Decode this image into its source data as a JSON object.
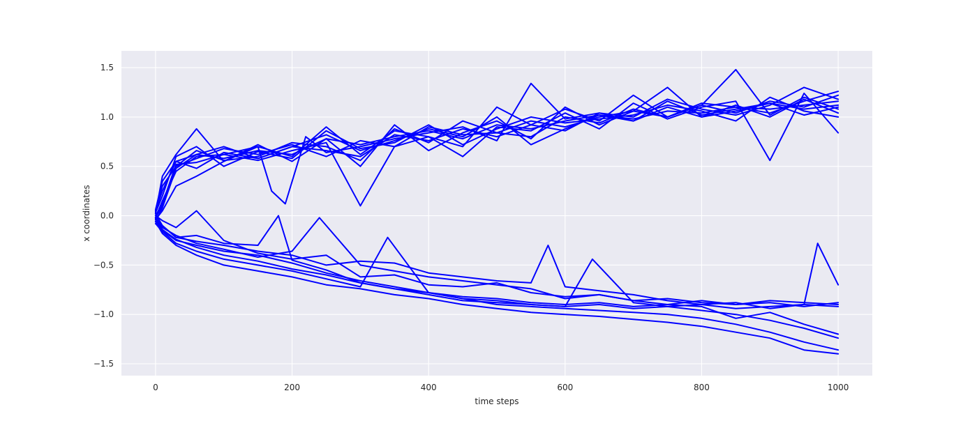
{
  "chart_data": {
    "type": "line",
    "title": "",
    "xlabel": "time steps",
    "ylabel": "x coordinates",
    "xlim": [
      -50,
      1050
    ],
    "ylim": [
      -1.62,
      1.67
    ],
    "xticks": [
      0,
      200,
      400,
      600,
      800,
      1000
    ],
    "yticks": [
      -1.5,
      -1.0,
      -0.5,
      0.0,
      0.5,
      1.0,
      1.5
    ],
    "xtick_labels": [
      "0",
      "200",
      "400",
      "600",
      "800",
      "1000"
    ],
    "ytick_labels": [
      "−1.5",
      "−1.0",
      "−0.5",
      "0.0",
      "0.5",
      "1.0",
      "1.5"
    ],
    "grid": true,
    "legend": "none",
    "colors": {
      "line": "#0000ff",
      "plot_bg": "#eaeaf2",
      "grid": "#ffffff",
      "text": "#262626"
    },
    "series": [
      {
        "x": [
          0,
          10,
          30,
          60,
          100,
          150,
          200,
          250,
          300,
          350,
          400,
          450,
          500,
          550,
          600,
          650,
          700,
          750,
          800,
          850,
          900,
          950,
          1000
        ],
        "values": [
          0.05,
          0.25,
          0.55,
          0.62,
          0.58,
          0.66,
          0.62,
          0.78,
          0.72,
          0.8,
          0.86,
          0.78,
          0.92,
          0.88,
          0.96,
          1.02,
          0.98,
          1.06,
          1.04,
          1.1,
          1.08,
          1.12,
          1.16
        ]
      },
      {
        "x": [
          0,
          10,
          30,
          60,
          100,
          150,
          200,
          250,
          300,
          350,
          400,
          450,
          500,
          550,
          600,
          650,
          700,
          750,
          800,
          850,
          900,
          950,
          1000
        ],
        "values": [
          0.02,
          0.4,
          0.62,
          0.88,
          0.55,
          0.7,
          0.6,
          0.9,
          0.62,
          0.86,
          0.8,
          0.7,
          1.1,
          0.92,
          1.08,
          0.96,
          1.22,
          1.0,
          1.12,
          1.48,
          1.02,
          1.2,
          1.08
        ]
      },
      {
        "x": [
          0,
          10,
          30,
          60,
          100,
          150,
          200,
          250,
          300,
          350,
          400,
          450,
          500,
          550,
          600,
          650,
          700,
          750,
          800,
          850,
          900,
          950,
          1000
        ],
        "values": [
          -0.02,
          0.1,
          0.5,
          0.58,
          0.68,
          0.62,
          0.72,
          0.6,
          0.76,
          0.7,
          0.9,
          0.82,
          0.84,
          0.96,
          0.9,
          1.0,
          1.06,
          1.0,
          1.12,
          1.04,
          1.16,
          1.1,
          1.22
        ]
      },
      {
        "x": [
          0,
          10,
          30,
          60,
          100,
          150,
          200,
          250,
          300,
          350,
          400,
          450,
          500,
          550,
          600,
          650,
          700,
          750,
          800,
          850,
          900,
          950,
          1000
        ],
        "values": [
          0.06,
          0.35,
          0.55,
          0.48,
          0.64,
          0.58,
          0.7,
          0.66,
          0.6,
          0.82,
          0.76,
          0.88,
          0.8,
          0.92,
          0.86,
          1.04,
          0.96,
          1.1,
          1.0,
          1.06,
          1.14,
          1.02,
          1.1
        ]
      },
      {
        "x": [
          0,
          10,
          30,
          60,
          100,
          150,
          200,
          250,
          300,
          350,
          400,
          450,
          500,
          550,
          600,
          650,
          700,
          750,
          800,
          850,
          900,
          950,
          1000
        ],
        "values": [
          -0.04,
          0.05,
          0.3,
          0.4,
          0.55,
          0.72,
          0.55,
          0.78,
          0.5,
          0.92,
          0.66,
          0.84,
          0.96,
          0.78,
          1.1,
          0.92,
          1.06,
          1.3,
          1.0,
          1.12,
          1.0,
          1.18,
          1.04
        ]
      },
      {
        "x": [
          0,
          10,
          30,
          60,
          100,
          150,
          200,
          250,
          300,
          350,
          400,
          450,
          500,
          550,
          600,
          650,
          700,
          750,
          800,
          850,
          900,
          950,
          1000
        ],
        "values": [
          0.03,
          0.2,
          0.6,
          0.7,
          0.5,
          0.65,
          0.58,
          0.86,
          0.68,
          0.74,
          0.92,
          0.72,
          0.88,
          1.0,
          0.94,
          0.98,
          1.02,
          1.12,
          1.06,
          0.96,
          1.2,
          1.06,
          1.0
        ]
      },
      {
        "x": [
          0,
          10,
          30,
          60,
          100,
          150,
          170,
          190,
          220,
          250,
          300,
          350,
          400,
          450,
          500,
          550,
          600,
          650,
          700,
          750,
          800,
          850,
          900,
          950,
          1000
        ],
        "values": [
          -0.02,
          0.15,
          0.45,
          0.6,
          0.62,
          0.7,
          0.25,
          0.12,
          0.8,
          0.64,
          0.7,
          0.78,
          0.84,
          0.9,
          0.76,
          1.34,
          0.98,
          1.04,
          1.0,
          1.18,
          1.08,
          1.02,
          1.12,
          1.3,
          1.18
        ]
      },
      {
        "x": [
          0,
          10,
          30,
          60,
          100,
          150,
          200,
          250,
          300,
          350,
          400,
          450,
          500,
          550,
          600,
          650,
          700,
          750,
          800,
          850,
          900,
          950,
          1000
        ],
        "values": [
          0.04,
          0.3,
          0.5,
          0.66,
          0.56,
          0.6,
          0.74,
          0.7,
          0.56,
          0.88,
          0.74,
          0.96,
          0.84,
          0.8,
          1.0,
          0.94,
          1.08,
          1.0,
          1.14,
          1.1,
          1.04,
          1.16,
          1.26
        ]
      },
      {
        "x": [
          0,
          10,
          30,
          60,
          100,
          150,
          200,
          250,
          300,
          350,
          400,
          450,
          500,
          550,
          600,
          650,
          700,
          750,
          800,
          850,
          900,
          950,
          1000
        ],
        "values": [
          0.0,
          0.12,
          0.52,
          0.54,
          0.62,
          0.56,
          0.66,
          0.74,
          0.1,
          0.7,
          0.8,
          0.6,
          0.9,
          0.86,
          1.04,
          0.88,
          1.14,
          0.98,
          1.1,
          1.16,
          0.56,
          1.24,
          0.84
        ]
      },
      {
        "x": [
          0,
          10,
          30,
          60,
          100,
          150,
          200,
          250,
          300,
          350,
          400,
          450,
          500,
          550,
          600,
          650,
          700,
          750,
          800,
          850,
          900,
          950,
          1000
        ],
        "values": [
          -0.06,
          0.08,
          0.48,
          0.62,
          0.7,
          0.58,
          0.7,
          0.82,
          0.66,
          0.76,
          0.88,
          0.8,
          1.0,
          0.72,
          0.88,
          1.02,
          0.96,
          1.16,
          1.02,
          1.08,
          1.14,
          1.08,
          1.12
        ]
      },
      {
        "x": [
          0,
          10,
          30,
          60,
          100,
          150,
          180,
          200,
          250,
          300,
          350,
          400,
          450,
          500,
          550,
          600,
          650,
          700,
          750,
          800,
          850,
          900,
          950,
          1000
        ],
        "values": [
          -0.02,
          -0.1,
          -0.22,
          -0.2,
          -0.28,
          -0.3,
          0.0,
          -0.45,
          -0.55,
          -0.68,
          -0.74,
          -0.78,
          -0.84,
          -0.86,
          -0.9,
          -0.92,
          -0.9,
          -0.94,
          -0.92,
          -0.9,
          -0.94,
          -0.92,
          -0.9,
          -0.92
        ]
      },
      {
        "x": [
          0,
          10,
          30,
          60,
          100,
          150,
          200,
          250,
          300,
          350,
          400,
          450,
          500,
          550,
          600,
          650,
          700,
          750,
          800,
          850,
          900,
          950,
          1000
        ],
        "values": [
          -0.04,
          -0.15,
          -0.25,
          -0.3,
          -0.36,
          -0.4,
          -0.48,
          -0.58,
          -0.66,
          -0.72,
          -0.78,
          -0.82,
          -0.84,
          -0.88,
          -0.9,
          -0.88,
          -0.92,
          -0.9,
          -0.86,
          -0.9,
          -0.88,
          -0.92,
          -0.88
        ]
      },
      {
        "x": [
          0,
          10,
          30,
          60,
          100,
          150,
          200,
          250,
          300,
          350,
          400,
          450,
          500,
          550,
          600,
          650,
          700,
          750,
          800,
          850,
          900,
          950,
          1000
        ],
        "values": [
          0.0,
          -0.05,
          -0.12,
          0.05,
          -0.25,
          -0.38,
          -0.44,
          -0.4,
          -0.62,
          -0.6,
          -0.7,
          -0.72,
          -0.68,
          -0.78,
          -0.82,
          -0.8,
          -0.86,
          -0.84,
          -0.88,
          -0.9,
          -0.86,
          -0.88,
          -0.9
        ]
      },
      {
        "x": [
          0,
          10,
          30,
          60,
          100,
          150,
          200,
          250,
          300,
          350,
          400,
          450,
          500,
          550,
          600,
          650,
          700,
          750,
          800,
          850,
          900,
          950,
          1000
        ],
        "values": [
          -0.06,
          -0.18,
          -0.3,
          -0.4,
          -0.5,
          -0.56,
          -0.62,
          -0.7,
          -0.74,
          -0.8,
          -0.84,
          -0.9,
          -0.94,
          -0.98,
          -1.0,
          -1.02,
          -1.05,
          -1.08,
          -1.12,
          -1.18,
          -1.24,
          -1.36,
          -1.4
        ]
      },
      {
        "x": [
          0,
          10,
          30,
          60,
          100,
          150,
          200,
          240,
          300,
          350,
          400,
          450,
          500,
          550,
          600,
          650,
          700,
          750,
          800,
          850,
          900,
          950,
          1000
        ],
        "values": [
          -0.02,
          -0.12,
          -0.2,
          -0.28,
          -0.34,
          -0.42,
          -0.36,
          -0.02,
          -0.5,
          -0.56,
          -0.62,
          -0.66,
          -0.7,
          -0.74,
          -0.84,
          -0.8,
          -0.86,
          -0.9,
          -0.92,
          -1.04,
          -0.98,
          -1.1,
          -1.2
        ]
      },
      {
        "x": [
          0,
          10,
          30,
          60,
          100,
          150,
          200,
          250,
          300,
          350,
          400,
          450,
          500,
          550,
          575,
          600,
          650,
          700,
          750,
          800,
          850,
          900,
          950,
          970,
          1000
        ],
        "values": [
          0.02,
          -0.1,
          -0.22,
          -0.26,
          -0.3,
          -0.36,
          -0.4,
          -0.5,
          -0.46,
          -0.48,
          -0.58,
          -0.62,
          -0.66,
          -0.68,
          -0.3,
          -0.72,
          -0.76,
          -0.8,
          -0.86,
          -0.9,
          -0.88,
          -0.94,
          -0.9,
          -0.28,
          -0.7
        ]
      },
      {
        "x": [
          0,
          10,
          30,
          60,
          100,
          150,
          200,
          250,
          300,
          340,
          400,
          450,
          500,
          550,
          600,
          650,
          700,
          750,
          800,
          850,
          900,
          950,
          1000
        ],
        "values": [
          -0.08,
          -0.16,
          -0.28,
          -0.36,
          -0.44,
          -0.5,
          -0.56,
          -0.64,
          -0.72,
          -0.22,
          -0.78,
          -0.84,
          -0.9,
          -0.92,
          -0.94,
          -0.96,
          -0.98,
          -1.0,
          -1.04,
          -1.1,
          -1.18,
          -1.28,
          -1.36
        ]
      },
      {
        "x": [
          0,
          10,
          30,
          60,
          100,
          150,
          200,
          250,
          300,
          350,
          400,
          450,
          500,
          550,
          600,
          640,
          700,
          750,
          800,
          850,
          900,
          950,
          1000
        ],
        "values": [
          -0.03,
          -0.14,
          -0.24,
          -0.32,
          -0.4,
          -0.46,
          -0.54,
          -0.6,
          -0.68,
          -0.74,
          -0.8,
          -0.86,
          -0.88,
          -0.9,
          -0.92,
          -0.44,
          -0.88,
          -0.92,
          -0.96,
          -1.0,
          -1.06,
          -1.14,
          -1.24
        ]
      }
    ]
  }
}
